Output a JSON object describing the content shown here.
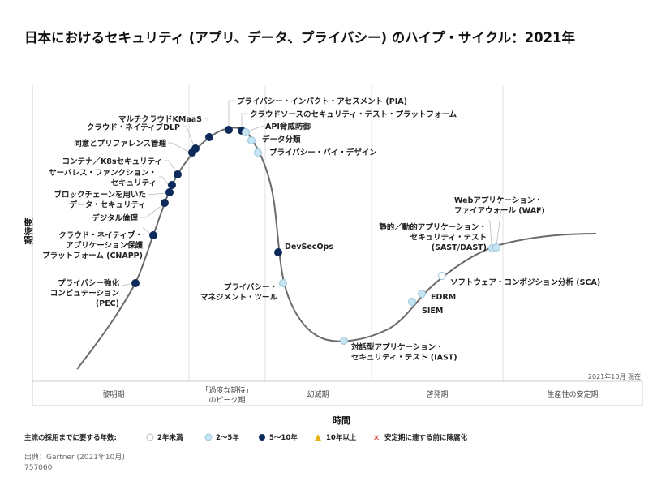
{
  "title": "日本におけるセキュリティ (アプリ、データ、プライバシー) のハイプ・サイクル：2021年",
  "y_axis": "期待度",
  "x_axis": "時間",
  "as_of": "2021年10月 現在",
  "phases": [
    "黎明期",
    "「過度な期待」",
    "のピーク期",
    "幻滅期",
    "啓発期",
    "生産性の安定期"
  ],
  "colors": {
    "navy": "#0d2a5a",
    "light": "#c6e4f2",
    "white": "#ffffff",
    "curve": "#6b6b6b",
    "triangle": "#e8b21a",
    "x": "#d9342b"
  },
  "items": [
    {
      "lines": [
        "プライバシー強化",
        "コンピュテーション",
        "(PEC)"
      ],
      "years": "5~10"
    },
    {
      "lines": [
        "クラウド・ネイティブ・",
        "アプリケーション保護",
        "プラットフォーム (CNAPP)"
      ],
      "years": "5~10"
    },
    {
      "lines": [
        "デジタル倫理"
      ],
      "years": "5~10"
    },
    {
      "lines": [
        "ブロックチェーンを用いた",
        "データ・セキュリティ"
      ],
      "years": "5~10"
    },
    {
      "lines": [
        "サーバレス・ファンクション・",
        "セキュリティ"
      ],
      "years": "5~10"
    },
    {
      "lines": [
        "コンテナ／K8sセキュリティ"
      ],
      "years": "5~10"
    },
    {
      "lines": [
        "同意とプリファレンス管理"
      ],
      "years": "5~10"
    },
    {
      "lines": [
        "クラウド・ネイティブDLP"
      ],
      "years": "5~10"
    },
    {
      "lines": [
        "マルチクラウドKMaaS"
      ],
      "years": "5~10"
    },
    {
      "lines": [
        "プライバシー・インパクト・アセスメント (PIA)"
      ],
      "years": "5~10"
    },
    {
      "lines": [
        "クラウドソースのセキュリティ・テスト・プラットフォーム"
      ],
      "years": "5~10"
    },
    {
      "lines": [
        "API脅威防御"
      ],
      "years": "2~5"
    },
    {
      "lines": [
        "データ分類"
      ],
      "years": "2~5"
    },
    {
      "lines": [
        "プライバシー・バイ・デザイン"
      ],
      "years": "2~5"
    },
    {
      "lines": [
        "DevSecOps"
      ],
      "years": "5~10"
    },
    {
      "lines": [
        "プライバシー・",
        "マネジメント・ツール"
      ],
      "years": "2~5"
    },
    {
      "lines": [
        "対話型アプリケーション・",
        "セキュリティ・テスト (IAST)"
      ],
      "years": "2~5"
    },
    {
      "lines": [
        "SIEM"
      ],
      "years": "2~5"
    },
    {
      "lines": [
        "EDRM"
      ],
      "years": "2~5"
    },
    {
      "lines": [
        "ソフトウェア・コンポジション分析 (SCA)"
      ],
      "years": "<2"
    },
    {
      "lines": [
        "静的／動的アプリケーション・",
        "セキュリティ・テスト",
        "(SAST/DAST)"
      ],
      "years": "2~5"
    },
    {
      "lines": [
        "Webアプリケーション・",
        "ファイアウォール (WAF)"
      ],
      "years": "2~5"
    }
  ],
  "legend": {
    "title": "主流の採用までに要する年数:",
    "items": [
      "2年未満",
      "2～5年",
      "5～10年",
      "10年以上",
      "安定期に達する前に陳腐化"
    ]
  },
  "source": "出典：Gartner (2021年10月)",
  "doc_id": "757060"
}
